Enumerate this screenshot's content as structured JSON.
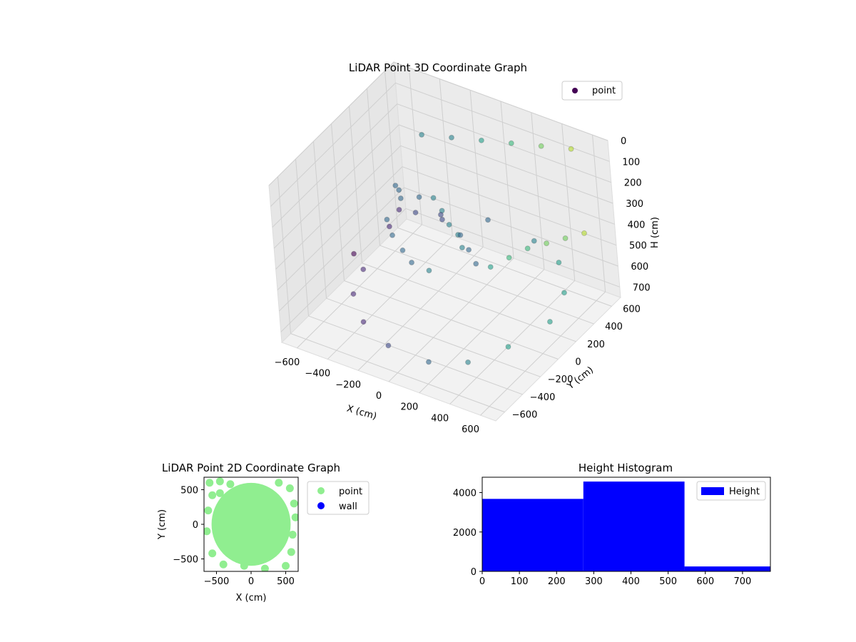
{
  "chart_data": [
    {
      "type": "scatter",
      "title": "LiDAR Point 3D Coordinate Graph",
      "xlabel": "X (cm)",
      "ylabel": "Y (cm)",
      "zlabel": "H (cm)",
      "xlim": [
        -700,
        700
      ],
      "ylim": [
        -700,
        700
      ],
      "zlim": [
        0,
        750
      ],
      "x_ticks": [
        -600,
        -400,
        -200,
        0,
        200,
        400,
        600
      ],
      "y_ticks": [
        -600,
        -400,
        -200,
        0,
        200,
        400,
        600
      ],
      "z_ticks": [
        0,
        100,
        200,
        300,
        400,
        500,
        600,
        700
      ],
      "z_axis_inverted": true,
      "grid": true,
      "colormap": "viridis",
      "legend": {
        "placement": "top-right",
        "entries": [
          "point"
        ]
      },
      "series": [
        {
          "name": "point",
          "color": "#440154",
          "points_sample": [
            [
              -380,
              120,
              260
            ],
            [
              -320,
              60,
              240
            ],
            [
              -260,
              -20,
              230
            ],
            [
              -200,
              80,
              250
            ],
            [
              -150,
              150,
              270
            ],
            [
              -80,
              120,
              300
            ],
            [
              0,
              60,
              320
            ],
            [
              80,
              20,
              330
            ],
            [
              140,
              -40,
              350
            ],
            [
              -300,
              -120,
              300
            ],
            [
              -220,
              -200,
              320
            ],
            [
              -120,
              -260,
              340
            ],
            [
              -40,
              -300,
              360
            ],
            [
              60,
              -280,
              380
            ],
            [
              -420,
              200,
              420
            ],
            [
              -350,
              260,
              440
            ],
            [
              -200,
              300,
              450
            ],
            [
              -60,
              260,
              470
            ],
            [
              40,
              180,
              480
            ],
            [
              120,
              120,
              500
            ],
            [
              -500,
              -100,
              600
            ],
            [
              -450,
              -300,
              620
            ],
            [
              -300,
              -450,
              650
            ],
            [
              -100,
              -520,
              680
            ],
            [
              150,
              -500,
              700
            ],
            [
              350,
              -400,
              690
            ],
            [
              500,
              -200,
              660
            ],
            [
              600,
              100,
              640
            ],
            [
              550,
              350,
              620
            ],
            [
              400,
              550,
              600
            ],
            [
              200,
              620,
              580
            ],
            [
              -100,
              620,
              560
            ],
            [
              -350,
              520,
              560
            ],
            [
              -560,
              300,
              580
            ],
            [
              -620,
              0,
              600
            ],
            [
              620,
              -500,
              120
            ],
            [
              620,
              -300,
              160
            ],
            [
              620,
              -100,
              200
            ],
            [
              620,
              100,
              260
            ],
            [
              620,
              300,
              320
            ],
            [
              620,
              500,
              380
            ],
            [
              500,
              620,
              60
            ],
            [
              300,
              620,
              100
            ],
            [
              100,
              620,
              140
            ],
            [
              -100,
              620,
              180
            ],
            [
              -300,
              620,
              220
            ],
            [
              -500,
              620,
              260
            ]
          ]
        }
      ]
    },
    {
      "type": "scatter",
      "title": "LiDAR Point 2D Coordinate Graph",
      "xlabel": "X (cm)",
      "ylabel": "Y (cm)",
      "xlim": [
        -680,
        680
      ],
      "ylim": [
        -680,
        680
      ],
      "x_ticks": [
        -500,
        0,
        500
      ],
      "y_ticks": [
        -500,
        0,
        500
      ],
      "legend": {
        "placement": "right, outside",
        "entries": [
          "point",
          "wall"
        ]
      },
      "series": [
        {
          "name": "point",
          "color": "#90ee90",
          "points_sample": [
            [
              -600,
              600
            ],
            [
              -450,
              620
            ],
            [
              -300,
              580
            ],
            [
              400,
              600
            ],
            [
              560,
              520
            ],
            [
              620,
              300
            ],
            [
              640,
              100
            ],
            [
              600,
              -150
            ],
            [
              580,
              -400
            ],
            [
              500,
              -600
            ],
            [
              200,
              -640
            ],
            [
              -100,
              -600
            ],
            [
              -400,
              -580
            ],
            [
              -560,
              -420
            ],
            [
              -640,
              -100
            ],
            [
              -620,
              200
            ],
            [
              -560,
              420
            ],
            [
              -100,
              400
            ],
            [
              100,
              420
            ],
            [
              250,
              300
            ],
            [
              300,
              100
            ],
            [
              250,
              -100
            ],
            [
              150,
              -300
            ],
            [
              -50,
              -450
            ],
            [
              -250,
              -350
            ],
            [
              -380,
              -150
            ],
            [
              -400,
              100
            ],
            [
              -300,
              300
            ],
            [
              0,
              0
            ],
            [
              100,
              100
            ],
            [
              -150,
              -100
            ],
            [
              50,
              -200
            ],
            [
              -200,
              150
            ],
            [
              200,
              -50
            ],
            [
              350,
              350
            ],
            [
              -450,
              450
            ]
          ]
        },
        {
          "name": "wall",
          "color": "#0000ff",
          "points_sample": []
        }
      ]
    },
    {
      "type": "bar",
      "title": "Height Histogram",
      "xlabel": "",
      "ylabel": "",
      "xlim": [
        0,
        775
      ],
      "ylim": [
        0,
        4780
      ],
      "x_ticks": [
        0,
        100,
        200,
        300,
        400,
        500,
        600,
        700
      ],
      "y_ticks": [
        0,
        2000,
        4000
      ],
      "bin_edges": [
        0,
        272,
        544,
        775
      ],
      "values": [
        3680,
        4560,
        250
      ],
      "legend": {
        "placement": "top-right",
        "entries": [
          "Height"
        ]
      },
      "series": [
        {
          "name": "Height",
          "color": "#0000ff",
          "values": [
            3680,
            4560,
            250
          ]
        }
      ]
    }
  ]
}
